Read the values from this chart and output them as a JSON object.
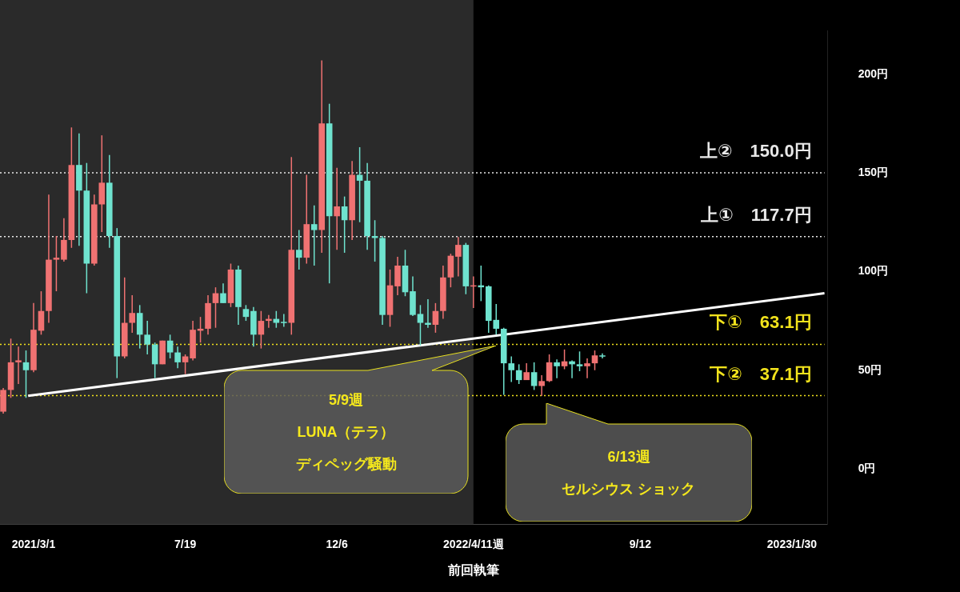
{
  "chart_data": {
    "type": "candlestick",
    "x": [
      "2021-02-01",
      "2021-02-08",
      "2021-02-15",
      "2021-02-22",
      "2021-03-01",
      "2021-03-08",
      "2021-03-15",
      "2021-03-22",
      "2021-03-29",
      "2021-04-05",
      "2021-04-12",
      "2021-04-19",
      "2021-04-26",
      "2021-05-03",
      "2021-05-10",
      "2021-05-17",
      "2021-05-24",
      "2021-05-31",
      "2021-06-07",
      "2021-06-14",
      "2021-06-21",
      "2021-06-28",
      "2021-07-05",
      "2021-07-12",
      "2021-07-19",
      "2021-07-26",
      "2021-08-02",
      "2021-08-09",
      "2021-08-16",
      "2021-08-23",
      "2021-08-30",
      "2021-09-06",
      "2021-09-13",
      "2021-09-20",
      "2021-09-27",
      "2021-10-04",
      "2021-10-11",
      "2021-10-18",
      "2021-10-25",
      "2021-11-01",
      "2021-11-08",
      "2021-11-15",
      "2021-11-22",
      "2021-11-29",
      "2021-12-06",
      "2021-12-13",
      "2021-12-20",
      "2021-12-27",
      "2022-01-03",
      "2022-01-10",
      "2022-01-17",
      "2022-01-24",
      "2022-01-31",
      "2022-02-07",
      "2022-02-14",
      "2022-02-21",
      "2022-02-28",
      "2022-03-07",
      "2022-03-14",
      "2022-03-21",
      "2022-03-28",
      "2022-04-04",
      "2022-04-11",
      "2022-04-18",
      "2022-04-25",
      "2022-05-02",
      "2022-05-09",
      "2022-05-16",
      "2022-05-23",
      "2022-05-30",
      "2022-06-06",
      "2022-06-13",
      "2022-06-20",
      "2022-06-27",
      "2022-07-04",
      "2022-07-11",
      "2022-07-18",
      "2022-07-25",
      "2022-08-01",
      "2022-08-08"
    ],
    "ohlc": [
      [
        29,
        41,
        28,
        40
      ],
      [
        40,
        66,
        36,
        54
      ],
      [
        54,
        62,
        43,
        55
      ],
      [
        54,
        60,
        36,
        50
      ],
      [
        50,
        84,
        49,
        70.5
      ],
      [
        70,
        90,
        68,
        80
      ],
      [
        80,
        139,
        74,
        106
      ],
      [
        106,
        118,
        90,
        107
      ],
      [
        106,
        127,
        105,
        116
      ],
      [
        116,
        173,
        112,
        154
      ],
      [
        154,
        170,
        113,
        141
      ],
      [
        141,
        155,
        89,
        104
      ],
      [
        104,
        139,
        103,
        134
      ],
      [
        134,
        169,
        120,
        145
      ],
      [
        145,
        159,
        112,
        118
      ],
      [
        118,
        122,
        46,
        57
      ],
      [
        57,
        97,
        56,
        74
      ],
      [
        74,
        88,
        69,
        79
      ],
      [
        79,
        83,
        61,
        68
      ],
      [
        68,
        75,
        58,
        63
      ],
      [
        63,
        64,
        46,
        53
      ],
      [
        53,
        65,
        53,
        65
      ],
      [
        65,
        68,
        56,
        59
      ],
      [
        59,
        62,
        51,
        54
      ],
      [
        54,
        58,
        48,
        57
      ],
      [
        56,
        75,
        55,
        70.5
      ],
      [
        70,
        77,
        64,
        71
      ],
      [
        71,
        88,
        68,
        84
      ],
      [
        84,
        92,
        71.5,
        89
      ],
      [
        89,
        94,
        84,
        84
      ],
      [
        84,
        104,
        82,
        101
      ],
      [
        101,
        103,
        73,
        82
      ],
      [
        81,
        83,
        75,
        77
      ],
      [
        80,
        82,
        62,
        68
      ],
      [
        68,
        80,
        61,
        75
      ],
      [
        75,
        78,
        71.5,
        76
      ],
      [
        76,
        80,
        71.5,
        74
      ],
      [
        74.5,
        78.5,
        72,
        74
      ],
      [
        74,
        158,
        68,
        111
      ],
      [
        111,
        121,
        101,
        107
      ],
      [
        107,
        149,
        104,
        124
      ],
      [
        124,
        133.5,
        103,
        121
      ],
      [
        121,
        207,
        109.5,
        175
      ],
      [
        175,
        185,
        94,
        128
      ],
      [
        128,
        152.5,
        111,
        133
      ],
      [
        133,
        138,
        109.5,
        126
      ],
      [
        126,
        156,
        116,
        149
      ],
      [
        149,
        163,
        125,
        146
      ],
      [
        146,
        155,
        111,
        118
      ],
      [
        118,
        126,
        105,
        117
      ],
      [
        117,
        118,
        73,
        78
      ],
      [
        78,
        101,
        72,
        93
      ],
      [
        92.5,
        107.5,
        88,
        103
      ],
      [
        103,
        111,
        87.5,
        89.5
      ],
      [
        90,
        97.5,
        77.5,
        78
      ],
      [
        78.5,
        83,
        62.5,
        74
      ],
      [
        74,
        86,
        71.5,
        73
      ],
      [
        73,
        84,
        69,
        80
      ],
      [
        80,
        103,
        76,
        97
      ],
      [
        97,
        109,
        92,
        108
      ],
      [
        107.5,
        117.5,
        97.5,
        113.5
      ],
      [
        113.5,
        114.5,
        88.5,
        92.5
      ],
      [
        92.5,
        97.5,
        81.5,
        93
      ],
      [
        93,
        103,
        85,
        92
      ],
      [
        92.5,
        93,
        69,
        75
      ],
      [
        75.5,
        83.5,
        68,
        71
      ],
      [
        71,
        71.5,
        37.5,
        53.5
      ],
      [
        53.5,
        57,
        44,
        50
      ],
      [
        50,
        53,
        43,
        45
      ],
      [
        45,
        53.5,
        45,
        49
      ],
      [
        49,
        54,
        40,
        42
      ],
      [
        42,
        47.5,
        37,
        44.5
      ],
      [
        44.5,
        58,
        44,
        54
      ],
      [
        54,
        55.5,
        46,
        52
      ],
      [
        52,
        60.5,
        50.5,
        54.5
      ],
      [
        54.5,
        55,
        46,
        53
      ],
      [
        53,
        59.5,
        49.5,
        52
      ],
      [
        52,
        56,
        46,
        53.5
      ],
      [
        53.5,
        60,
        50,
        57.5
      ],
      [
        57.5,
        58.5,
        56,
        57
      ]
    ],
    "colors": [
      "#f07272",
      "#f07272",
      "#f07272",
      "#6fe3cf",
      "#f07272",
      "#f07272",
      "#f07272",
      "#f07272",
      "#f07272",
      "#f07272",
      "#6fe3cf",
      "#6fe3cf",
      "#f07272",
      "#f07272",
      "#6fe3cf",
      "#6fe3cf",
      "#f07272",
      "#f07272",
      "#6fe3cf",
      "#6fe3cf",
      "#6fe3cf",
      "#f07272",
      "#6fe3cf",
      "#6fe3cf",
      "#f07272",
      "#f07272",
      "#f07272",
      "#f07272",
      "#f07272",
      "#6fe3cf",
      "#f07272",
      "#6fe3cf",
      "#6fe3cf",
      "#6fe3cf",
      "#f07272",
      "#f07272",
      "#6fe3cf",
      "#6fe3cf",
      "#f07272",
      "#6fe3cf",
      "#f07272",
      "#6fe3cf",
      "#f07272",
      "#6fe3cf",
      "#f07272",
      "#6fe3cf",
      "#f07272",
      "#6fe3cf",
      "#6fe3cf",
      "#6fe3cf",
      "#6fe3cf",
      "#f07272",
      "#f07272",
      "#6fe3cf",
      "#6fe3cf",
      "#6fe3cf",
      "#6fe3cf",
      "#f07272",
      "#f07272",
      "#f07272",
      "#f07272",
      "#6fe3cf",
      "#f07272",
      "#6fe3cf",
      "#6fe3cf",
      "#6fe3cf",
      "#6fe3cf",
      "#6fe3cf",
      "#6fe3cf",
      "#f07272",
      "#6fe3cf",
      "#f07272",
      "#f07272",
      "#6fe3cf",
      "#f07272",
      "#6fe3cf",
      "#6fe3cf",
      "#f07272",
      "#f07272",
      "#6fe3cf"
    ],
    "series": [
      {
        "type": "line",
        "x": [
          "2021-02-24",
          "2023-03-01"
        ],
        "values": [
          37,
          89
        ],
        "color": "#ffffff"
      }
    ],
    "xlim": [
      "2021-01-29",
      "2023-03-04"
    ],
    "xticks": [
      {
        "value": "2021-03-01",
        "label": "2021/3/1"
      },
      {
        "value": "2021-07-19",
        "label": "7/19"
      },
      {
        "value": "2021-12-06",
        "label": "12/6"
      },
      {
        "value": "2022-04-11",
        "label": "2022/4/11週"
      },
      {
        "value": "2022-09-12",
        "label": "9/12"
      },
      {
        "value": "2023-01-30",
        "label": "2023/1/30"
      }
    ],
    "ylim": [
      -28,
      222
    ],
    "yticks": [
      {
        "value": 0,
        "label": "0円"
      },
      {
        "value": 50,
        "label": "50円"
      },
      {
        "value": 100,
        "label": "100円"
      },
      {
        "value": 150,
        "label": "150円"
      },
      {
        "value": 200,
        "label": "200円"
      }
    ],
    "ref_lines": [
      {
        "axis": "y",
        "value": 150,
        "label": "上②　150.0円",
        "color": "#e8e8e8",
        "line_style": "dotted"
      },
      {
        "axis": "y",
        "value": 117.7,
        "label": "上①　117.7円",
        "color": "#e8e8e8",
        "line_style": "dotted"
      },
      {
        "axis": "y",
        "value": 63.1,
        "label": "下①　63.1円",
        "color": "#f2e31c",
        "line_style": "dotted"
      },
      {
        "axis": "y",
        "value": 37.1,
        "label": "下②　37.1円",
        "color": "#f2e31c",
        "line_style": "dotted"
      }
    ],
    "bands": [
      {
        "axis": "x",
        "from": "2021-01-29",
        "to": "2022-04-11",
        "color": "#2a2a2a"
      }
    ],
    "xlabel": "前回執筆",
    "annotations": [
      "5/9週",
      "LUNA（テラ）",
      "ディペッグ騒動",
      "6/13週",
      "セルシウス ショック"
    ]
  }
}
